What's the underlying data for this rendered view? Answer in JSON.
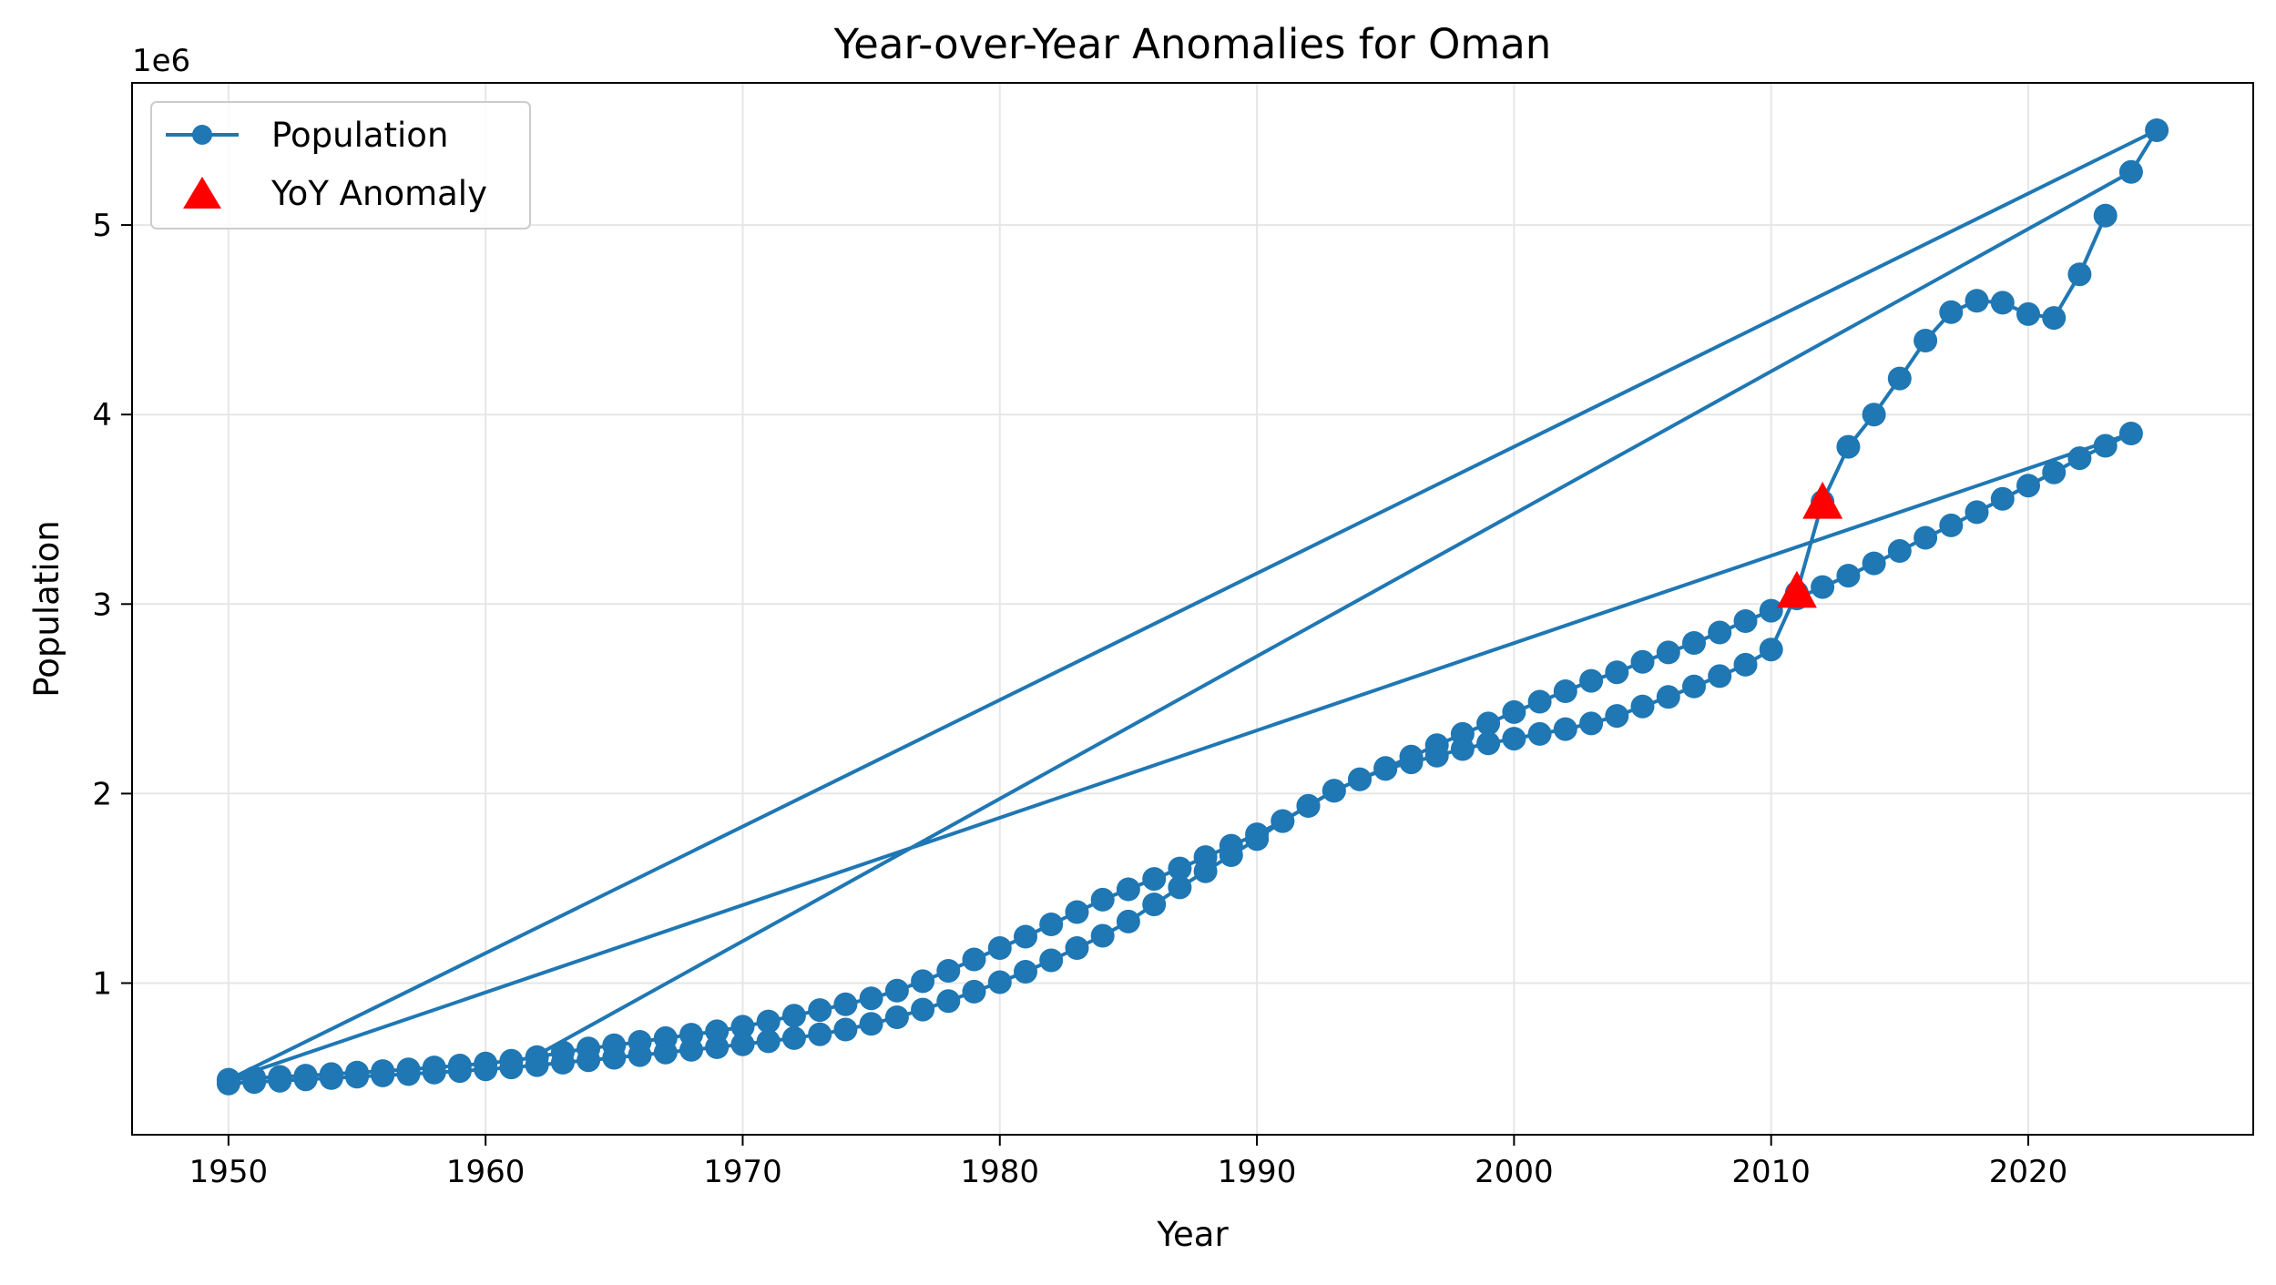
{
  "chart_data": {
    "type": "line",
    "title": "Year-over-Year Anomalies for Oman",
    "xlabel": "Year",
    "ylabel": "Population",
    "y_offset_label": "1e6",
    "xlim": [
      1946.25,
      2028.75
    ],
    "ylim": [
      200000,
      5750000
    ],
    "x_ticks": [
      1950,
      1960,
      1970,
      1980,
      1990,
      2000,
      2010,
      2020
    ],
    "x_tick_labels": [
      "1950",
      "1960",
      "1970",
      "1980",
      "1990",
      "2000",
      "2010",
      "2020"
    ],
    "y_ticks": [
      1000000,
      2000000,
      3000000,
      4000000,
      5000000
    ],
    "y_tick_labels": [
      "1",
      "2",
      "3",
      "4",
      "5"
    ],
    "grid": true,
    "legend_position": "upper-left",
    "colors": {
      "line": "#1f77b4",
      "anomaly": "#ff0000",
      "grid": "#e6e6e6"
    },
    "series": [
      {
        "name": "Population",
        "marker": "circle",
        "segments": [
          {
            "x": [
              1950,
              1951,
              1952,
              1953,
              1954,
              1955,
              1956,
              1957,
              1958,
              1959,
              1960,
              1961,
              1962,
              1963,
              1964,
              1965,
              1966,
              1967,
              1968,
              1969,
              1970,
              1971,
              1972,
              1973,
              1974,
              1975,
              1976,
              1977,
              1978,
              1979,
              1980,
              1981,
              1982,
              1983,
              1984,
              1985,
              1986,
              1987,
              1988,
              1989,
              1990,
              1991,
              1992,
              1993,
              1994,
              1995,
              1996,
              1997,
              1998,
              1999,
              2000,
              2001,
              2002,
              2003,
              2004,
              2005,
              2006,
              2007,
              2008,
              2009,
              2010,
              2011,
              2012,
              2013,
              2014,
              2015,
              2016,
              2017,
              2018,
              2019,
              2020,
              2021,
              2022,
              2023,
              2024
            ],
            "y": [
              490000,
              500000,
              505000,
              512000,
              520000,
              528000,
              536000,
              545000,
              555000,
              565000,
              576000,
              590000,
              610000,
              635000,
              655000,
              672000,
              690000,
              710000,
              728000,
              746000,
              770000,
              798000,
              828000,
              858000,
              888000,
              920000,
              960000,
              1010000,
              1065000,
              1125000,
              1185000,
              1245000,
              1310000,
              1375000,
              1440000,
              1495000,
              1550000,
              1605000,
              1665000,
              1725000,
              1785000,
              1855000,
              1935000,
              2015000,
              2075000,
              2135000,
              2195000,
              2255000,
              2315000,
              2370000,
              2430000,
              2485000,
              2540000,
              2595000,
              2640000,
              2695000,
              2745000,
              2795000,
              2850000,
              2910000,
              2965000,
              3030000,
              3090000,
              3150000,
              3215000,
              3280000,
              3350000,
              3415000,
              3485000,
              3555000,
              3625000,
              3695000,
              3770000,
              3835000,
              3900000
            ]
          },
          {
            "x": [
              1950,
              1951,
              1952,
              1953,
              1954,
              1955,
              1956,
              1957,
              1958,
              1959,
              1960,
              1961,
              1962,
              1963,
              1964,
              1965,
              1966,
              1967,
              1968,
              1969,
              1970,
              1971,
              1972,
              1973,
              1974,
              1975,
              1976,
              1977,
              1978,
              1979,
              1980,
              1981,
              1982,
              1983,
              1984,
              1985,
              1986,
              1987,
              1988,
              1989,
              1990,
              1991,
              1992,
              1993,
              1994,
              1995,
              1996,
              1997,
              1998,
              1999,
              2000,
              2001,
              2002,
              2003,
              2004,
              2005,
              2006,
              2007,
              2008,
              2009,
              2010,
              2011,
              2012,
              2013,
              2014,
              2015,
              2016,
              2017,
              2018,
              2019,
              2020,
              2021,
              2022,
              2023
            ],
            "y": [
              470000,
              478000,
              485000,
              492000,
              499000,
              506000,
              513000,
              520000,
              528000,
              536000,
              545000,
              555000,
              567000,
              580000,
              593000,
              606000,
              620000,
              634000,
              648000,
              662000,
              677000,
              693000,
              710000,
              730000,
              755000,
              785000,
              820000,
              860000,
              905000,
              955000,
              1005000,
              1060000,
              1120000,
              1185000,
              1250000,
              1325000,
              1415000,
              1505000,
              1590000,
              1675000,
              1760000,
              1855000,
              1935000,
              2015000,
              2075000,
              2130000,
              2165000,
              2200000,
              2235000,
              2265000,
              2290000,
              2315000,
              2340000,
              2370000,
              2410000,
              2460000,
              2510000,
              2565000,
              2620000,
              2680000,
              2760000,
              3060000,
              3540000,
              3830000,
              4000000,
              4190000,
              4390000,
              4540000,
              4600000,
              4590000,
              4530000,
              4510000,
              4740000,
              5050000
            ]
          },
          {
            "x": [
              1962,
              2024,
              2025,
              1950,
              2024
            ],
            "y": [
              620000,
              5280000,
              5500000,
              490000,
              3900000
            ]
          }
        ]
      },
      {
        "name": "YoY Anomaly",
        "marker": "triangle",
        "x": [
          2011,
          2012
        ],
        "y": [
          3070000,
          3540000
        ]
      }
    ]
  }
}
